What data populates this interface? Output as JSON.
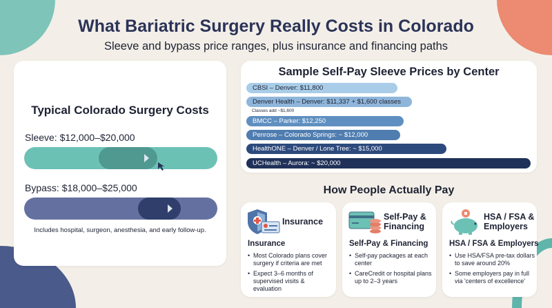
{
  "title": "What Bariatric Surgery Really Costs in Colorado",
  "subtitle": "Sleeve and bypass price ranges, plus insurance and financing paths",
  "costs": {
    "title": "Typical Colorado Surgery Costs",
    "sleeve_label": "Sleeve: $12,000–$20,000",
    "bypass_label": "Bypass: $18,000–$25,000",
    "note": "Includes hospital, surgeon, anesthesia, and early follow-up.",
    "colors": {
      "sleeve": "#6cc1b5",
      "bypass": "#6471a0"
    }
  },
  "chart_data": {
    "type": "bar",
    "orientation": "horizontal",
    "title": "Sample Self-Pay Sleeve Prices by Center",
    "categories": [
      "CBSI – Denver",
      "Denver Health – Denver",
      "BMCC – Parker",
      "Penrose – Colorado Springs",
      "HealthONE – Denver / Lone Tree",
      "UCHealth – Aurora"
    ],
    "values": [
      11800,
      11337,
      12250,
      12000,
      15000,
      20000
    ],
    "labels": [
      "CBSI – Denver: $11,800",
      "Denver Health – Denver: $11,337 + $1,600 classes",
      "BMCC – Parker: $12,250",
      "Penrose – Colorado Springs: ~ $12,000",
      "HealthONE – Denver / Lone Tree: ~ $15,000",
      "UCHealth – Aurora: ~ $20,000"
    ],
    "annotation": "Classes add ~$1,600",
    "colors": [
      "#a9cde9",
      "#8fb6da",
      "#5f8fc0",
      "#4f7db0",
      "#2d4a7c",
      "#1f3158"
    ]
  },
  "pay": {
    "title": "How People Actually Pay",
    "cards": [
      {
        "title": "Insurance",
        "sub": "Insurance",
        "icon": "shield-insurance-card-icon",
        "bullets": [
          "Most Colorado plans cover surgery if criteria are met",
          "Expect 3–6 months of supervised visits & evaluation"
        ]
      },
      {
        "title": "Self-Pay & Financing",
        "sub": "Self-Pay & Financing",
        "icon": "credit-card-coins-icon",
        "bullets": [
          "Self-pay packages at each center",
          "CareCredit or hospital plans up to 2–3 years"
        ]
      },
      {
        "title": "HSA / FSA & Employers",
        "sub": "HSA / FSA & Employers",
        "icon": "piggy-bank-icon",
        "bullets": [
          "Use HSA/FSA pre-tax dollars to save around 20%",
          "Some employers pay in full via 'centers of excellence'"
        ]
      }
    ]
  }
}
